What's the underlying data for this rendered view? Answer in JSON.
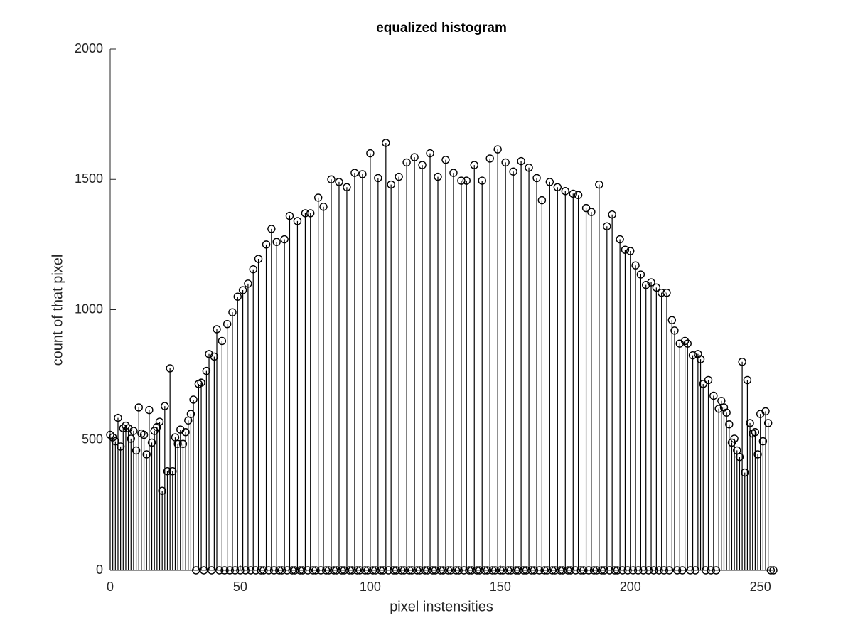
{
  "chart_data": {
    "type": "stem",
    "title": "equalized histogram",
    "xlabel": "pixel instensities",
    "ylabel": "count of that pixel",
    "color": "#000000",
    "xlim": [
      0,
      255
    ],
    "ylim": [
      0,
      2000
    ],
    "xticks": [
      0,
      50,
      100,
      150,
      200,
      250
    ],
    "yticks": [
      0,
      500,
      1000,
      1500,
      2000
    ],
    "x": [
      0,
      1,
      2,
      3,
      4,
      5,
      6,
      7,
      8,
      9,
      10,
      11,
      12,
      13,
      14,
      15,
      16,
      17,
      18,
      19,
      20,
      21,
      22,
      23,
      24,
      25,
      26,
      27,
      28,
      29,
      30,
      31,
      32,
      33,
      34,
      35,
      36,
      37,
      38,
      39,
      40,
      41,
      42,
      43,
      44,
      45,
      46,
      47,
      48,
      49,
      50,
      51,
      52,
      53,
      54,
      55,
      56,
      57,
      58,
      59,
      60,
      61,
      62,
      63,
      64,
      65,
      66,
      67,
      68,
      69,
      70,
      71,
      72,
      73,
      74,
      75,
      76,
      77,
      78,
      79,
      80,
      81,
      82,
      83,
      84,
      85,
      86,
      87,
      88,
      89,
      90,
      91,
      92,
      93,
      94,
      95,
      96,
      97,
      98,
      99,
      100,
      101,
      102,
      103,
      104,
      105,
      106,
      107,
      108,
      109,
      110,
      111,
      112,
      113,
      114,
      115,
      116,
      117,
      118,
      119,
      120,
      121,
      122,
      123,
      124,
      125,
      126,
      127,
      128,
      129,
      130,
      131,
      132,
      133,
      134,
      135,
      136,
      137,
      138,
      139,
      140,
      141,
      142,
      143,
      144,
      145,
      146,
      147,
      148,
      149,
      150,
      151,
      152,
      153,
      154,
      155,
      156,
      157,
      158,
      159,
      160,
      161,
      162,
      163,
      164,
      165,
      166,
      167,
      168,
      169,
      170,
      171,
      172,
      173,
      174,
      175,
      176,
      177,
      178,
      179,
      180,
      181,
      182,
      183,
      184,
      185,
      186,
      187,
      188,
      189,
      190,
      191,
      192,
      193,
      194,
      195,
      196,
      197,
      198,
      199,
      200,
      201,
      202,
      203,
      204,
      205,
      206,
      207,
      208,
      209,
      210,
      211,
      212,
      213,
      214,
      215,
      216,
      217,
      218,
      219,
      220,
      221,
      222,
      223,
      224,
      225,
      226,
      227,
      228,
      229,
      230,
      231,
      232,
      233,
      234,
      235,
      236,
      237,
      238,
      239,
      240,
      241,
      242,
      243,
      244,
      245,
      246,
      247,
      248,
      249,
      250,
      251,
      252,
      253,
      254,
      255
    ],
    "values": [
      520,
      510,
      495,
      585,
      475,
      545,
      555,
      545,
      505,
      535,
      460,
      625,
      525,
      520,
      445,
      615,
      490,
      535,
      550,
      570,
      305,
      630,
      380,
      775,
      380,
      510,
      485,
      540,
      485,
      530,
      575,
      600,
      655,
      0,
      715,
      720,
      0,
      765,
      830,
      0,
      820,
      925,
      0,
      880,
      0,
      945,
      0,
      990,
      0,
      1050,
      0,
      1075,
      0,
      1100,
      0,
      1155,
      0,
      1195,
      0,
      0,
      1250,
      0,
      1310,
      0,
      1260,
      0,
      0,
      1270,
      0,
      1360,
      0,
      0,
      1340,
      0,
      0,
      1370,
      0,
      1370,
      0,
      0,
      1430,
      0,
      1395,
      0,
      0,
      1500,
      0,
      0,
      1490,
      0,
      0,
      1470,
      0,
      0,
      1525,
      0,
      0,
      1520,
      0,
      0,
      1600,
      0,
      0,
      1505,
      0,
      0,
      1640,
      0,
      1480,
      0,
      0,
      1510,
      0,
      0,
      1565,
      0,
      0,
      1585,
      0,
      0,
      1555,
      0,
      0,
      1600,
      0,
      0,
      1510,
      0,
      0,
      1575,
      0,
      0,
      1525,
      0,
      0,
      1495,
      0,
      1495,
      0,
      0,
      1555,
      0,
      0,
      1495,
      0,
      0,
      1580,
      0,
      0,
      1615,
      0,
      0,
      1565,
      0,
      0,
      1530,
      0,
      0,
      1570,
      0,
      0,
      1545,
      0,
      0,
      1505,
      0,
      1420,
      0,
      0,
      1490,
      0,
      0,
      1470,
      0,
      0,
      1455,
      0,
      0,
      1445,
      0,
      1440,
      0,
      0,
      1390,
      0,
      1375,
      0,
      0,
      1480,
      0,
      0,
      1320,
      0,
      1365,
      0,
      0,
      1270,
      0,
      1230,
      0,
      1225,
      0,
      1170,
      0,
      1135,
      0,
      1095,
      0,
      1105,
      0,
      1085,
      0,
      1065,
      0,
      1065,
      0,
      960,
      920,
      0,
      870,
      0,
      880,
      870,
      0,
      825,
      0,
      830,
      810,
      715,
      0,
      730,
      0,
      670,
      0,
      620,
      650,
      625,
      605,
      560,
      490,
      505,
      460,
      435,
      800,
      375,
      730,
      565,
      525,
      530,
      445,
      600,
      495,
      610,
      565,
      0,
      0
    ]
  }
}
